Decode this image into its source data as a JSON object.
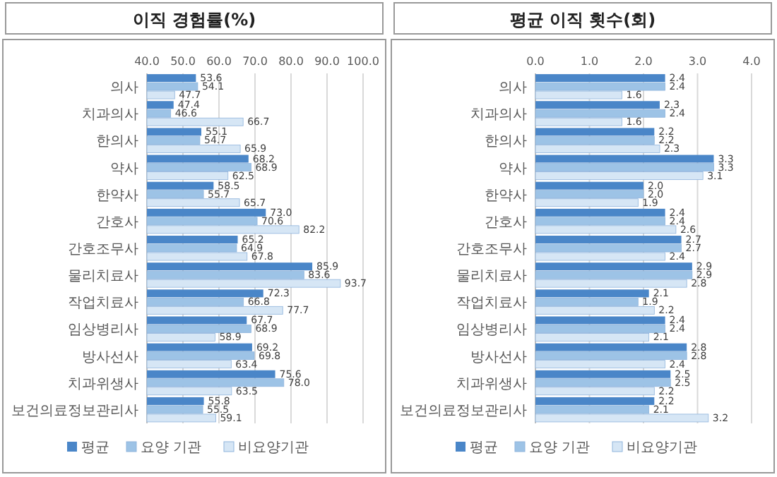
{
  "chart_data": [
    {
      "type": "bar",
      "orientation": "horizontal",
      "title": "이직 경험률(%)",
      "categories": [
        "의사",
        "치과의사",
        "한의사",
        "약사",
        "한약사",
        "간호사",
        "간호조무사",
        "물리치료사",
        "작업치료사",
        "임상병리사",
        "방사선사",
        "치과위생사",
        "보건의료정보관리사"
      ],
      "series": [
        {
          "name": "평균",
          "color": "#4a86c8",
          "values": [
            53.6,
            47.4,
            55.1,
            68.2,
            58.5,
            73.0,
            65.2,
            85.9,
            72.3,
            67.7,
            69.2,
            75.6,
            55.8
          ],
          "value_labels": [
            "53.6",
            "47.4",
            "55.1",
            "68.2",
            "58.5",
            "73.0",
            "65.2",
            "85.9",
            "72.3",
            "67.7",
            "69.2",
            "75.6",
            "55.8"
          ]
        },
        {
          "name": "요양 기관",
          "color": "#9dc3e6",
          "values": [
            54.1,
            46.6,
            54.7,
            68.9,
            55.7,
            70.6,
            64.9,
            83.6,
            66.8,
            68.9,
            69.8,
            78.0,
            55.5
          ],
          "value_labels": [
            "54.1",
            "46.6",
            "54.7",
            "68.9",
            "55.7",
            "70.6",
            "64.9",
            "83.6",
            "66.8",
            "68.9",
            "69.8",
            "78.0",
            "55.5"
          ]
        },
        {
          "name": "비요양기관",
          "color": "#d6e6f5",
          "values": [
            47.7,
            66.7,
            65.9,
            62.5,
            65.7,
            82.2,
            67.8,
            93.7,
            77.7,
            58.9,
            63.4,
            63.5,
            59.1
          ],
          "value_labels": [
            "47.7",
            "66.7",
            "65.9",
            "62.5",
            "65.7",
            "82.2",
            "67.8",
            "93.7",
            "77.7",
            "58.9",
            "63.4",
            "63.5",
            "59.1"
          ]
        }
      ],
      "xlim": [
        40,
        100
      ],
      "xticks": [
        {
          "value": 40,
          "label": "40.0"
        },
        {
          "value": 50,
          "label": "50.0"
        },
        {
          "value": 60,
          "label": "60.0"
        },
        {
          "value": 70,
          "label": "70.0"
        },
        {
          "value": 80,
          "label": "80.0"
        },
        {
          "value": 90,
          "label": "90.0"
        },
        {
          "value": 100,
          "label": "100.0"
        }
      ],
      "grid": "x",
      "legend": "bottom"
    },
    {
      "type": "bar",
      "orientation": "horizontal",
      "title": "평균 이직 횟수(회)",
      "categories": [
        "의사",
        "치과의사",
        "한의사",
        "약사",
        "한약사",
        "간호사",
        "간호조무사",
        "물리치료사",
        "작업치료사",
        "임상병리사",
        "방사선사",
        "치과위생사",
        "보건의료정보관리사"
      ],
      "series": [
        {
          "name": "평균",
          "color": "#4a86c8",
          "values": [
            2.4,
            2.3,
            2.2,
            3.3,
            2.0,
            2.4,
            2.7,
            2.9,
            2.1,
            2.4,
            2.8,
            2.5,
            2.2
          ],
          "value_labels": [
            "2.4",
            "2.3",
            "2.2",
            "3.3",
            "2.0",
            "2.4",
            "2.7",
            "2.9",
            "2.1",
            "2.4",
            "2.8",
            "2.5",
            "2.2"
          ]
        },
        {
          "name": "요양 기관",
          "color": "#9dc3e6",
          "values": [
            2.4,
            2.4,
            2.2,
            3.3,
            2.0,
            2.4,
            2.7,
            2.9,
            1.9,
            2.4,
            2.8,
            2.5,
            2.1
          ],
          "value_labels": [
            "2.4",
            "2.4",
            "2.2",
            "3.3",
            "2.0",
            "2.4",
            "2.7",
            "2.9",
            "1.9",
            "2.4",
            "2.8",
            "2.5",
            "2.1"
          ]
        },
        {
          "name": "비요양기관",
          "color": "#d6e6f5",
          "values": [
            1.6,
            1.6,
            2.3,
            3.1,
            1.9,
            2.6,
            2.4,
            2.8,
            2.2,
            2.1,
            2.4,
            2.2,
            3.2
          ],
          "value_labels": [
            "1.6",
            "1.6",
            "2.3",
            "3.1",
            "1.9",
            "2.6",
            "2.4",
            "2.8",
            "2.2",
            "2.1",
            "2.4",
            "2.2",
            "3.2"
          ]
        }
      ],
      "xlim": [
        0,
        4
      ],
      "xticks": [
        {
          "value": 0,
          "label": "0.0"
        },
        {
          "value": 1,
          "label": "1.0"
        },
        {
          "value": 2,
          "label": "2.0"
        },
        {
          "value": 3,
          "label": "3.0"
        },
        {
          "value": 4,
          "label": "4.0"
        }
      ],
      "grid": "x",
      "legend": "bottom"
    }
  ]
}
